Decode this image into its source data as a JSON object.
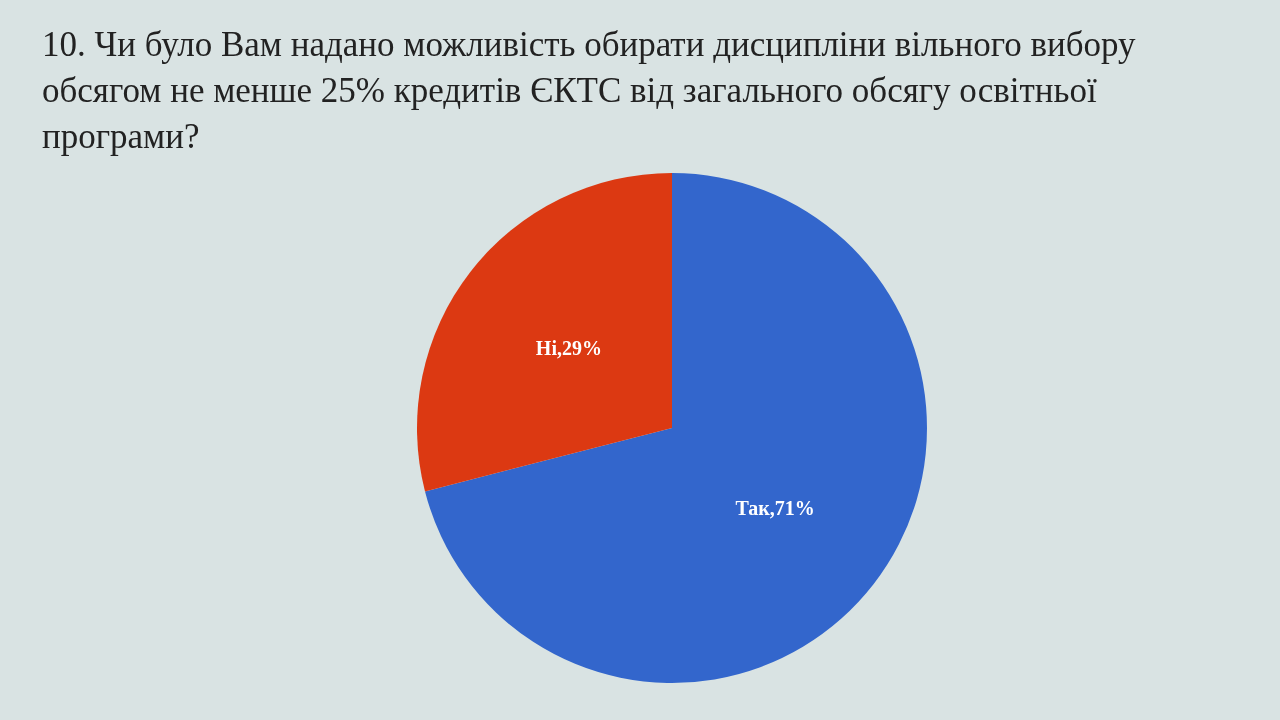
{
  "chart_data": {
    "type": "pie",
    "title": "10.  Чи було Вам надано можливість обирати дисципліни вільного вибору обсягом не менше 25% кредитів ЄКТС від загального обсягу освітньої програми?",
    "categories": [
      "Так",
      "Ні"
    ],
    "value_labels": [
      ",71%",
      ",29%"
    ],
    "values": [
      71,
      29
    ],
    "colors": [
      "#3366cc",
      "#dc3912"
    ],
    "legend": false
  }
}
